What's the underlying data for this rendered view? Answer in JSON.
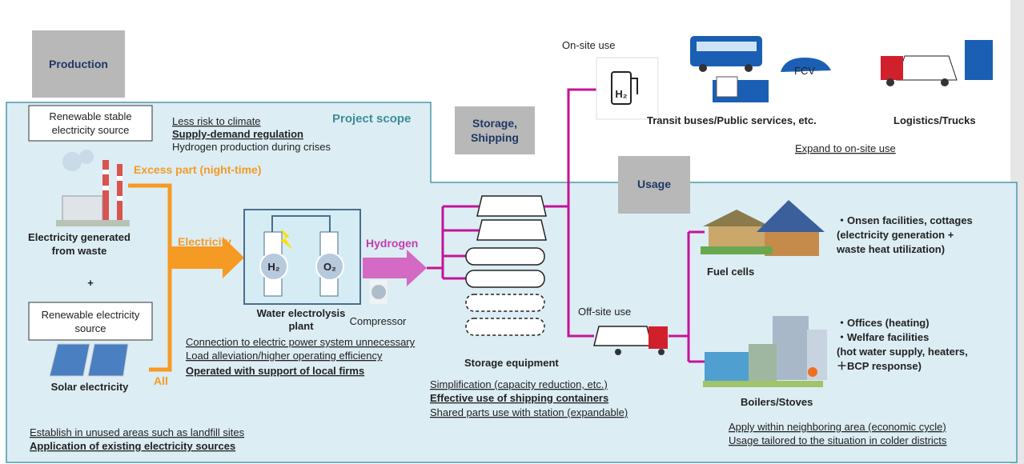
{
  "production": "Production",
  "project_scope": "Project scope",
  "sources": {
    "stable_box": [
      "Renewable stable",
      "electricity source"
    ],
    "benefits": [
      "Less risk to climate",
      "Supply-demand regulation",
      "Hydrogen production during crises"
    ],
    "excess": "Excess part (night-time)",
    "waste": [
      "Electricity generated",
      "from waste"
    ],
    "plus": "+",
    "renewable_box": [
      "Renewable electricity",
      "source"
    ],
    "all": "All",
    "solar": "Solar electricity",
    "notes": [
      "Establish in unused areas such as landfill sites",
      "Application of existing electricity sources"
    ]
  },
  "electrolysis": {
    "electricity": "Electricity",
    "hydrogen": "Hydrogen",
    "h2": "H₂",
    "o2": "O₂",
    "plant": [
      "Water electrolysis",
      "plant"
    ],
    "compressor": "Compressor",
    "notes": [
      "Connection to electric power system unnecessary",
      "Load alleviation/higher operating efficiency",
      "Operated with support of local firms"
    ]
  },
  "storage": {
    "label": [
      "Storage,",
      "Shipping"
    ],
    "equipment": "Storage equipment",
    "notes": [
      "Simplification (capacity reduction, etc.)",
      "Effective use of shipping containers",
      "Shared parts use with station (expandable)"
    ]
  },
  "usage": {
    "label": "Usage",
    "onsite": "On-site use",
    "station_icon": "H₂",
    "fcv": "FCV",
    "transit": "Transit buses/Public services, etc.",
    "logistics": "Logistics/Trucks",
    "expand": "Expand to on-site use",
    "offsite": "Off-site use",
    "fuel_cells": "Fuel cells",
    "fuel_cells_uses": [
      "・Onsen facilities, cottages",
      "(electricity generation +",
      "waste heat utilization)"
    ],
    "boilers": "Boilers/Stoves",
    "boilers_uses": [
      "・Offices (heating)",
      "・Welfare facilities",
      "(hot water supply, heaters,",
      "＋BCP response)"
    ],
    "notes": [
      "Apply within neighboring area (economic cycle)",
      "Usage tailored to the situation in colder districts"
    ]
  }
}
